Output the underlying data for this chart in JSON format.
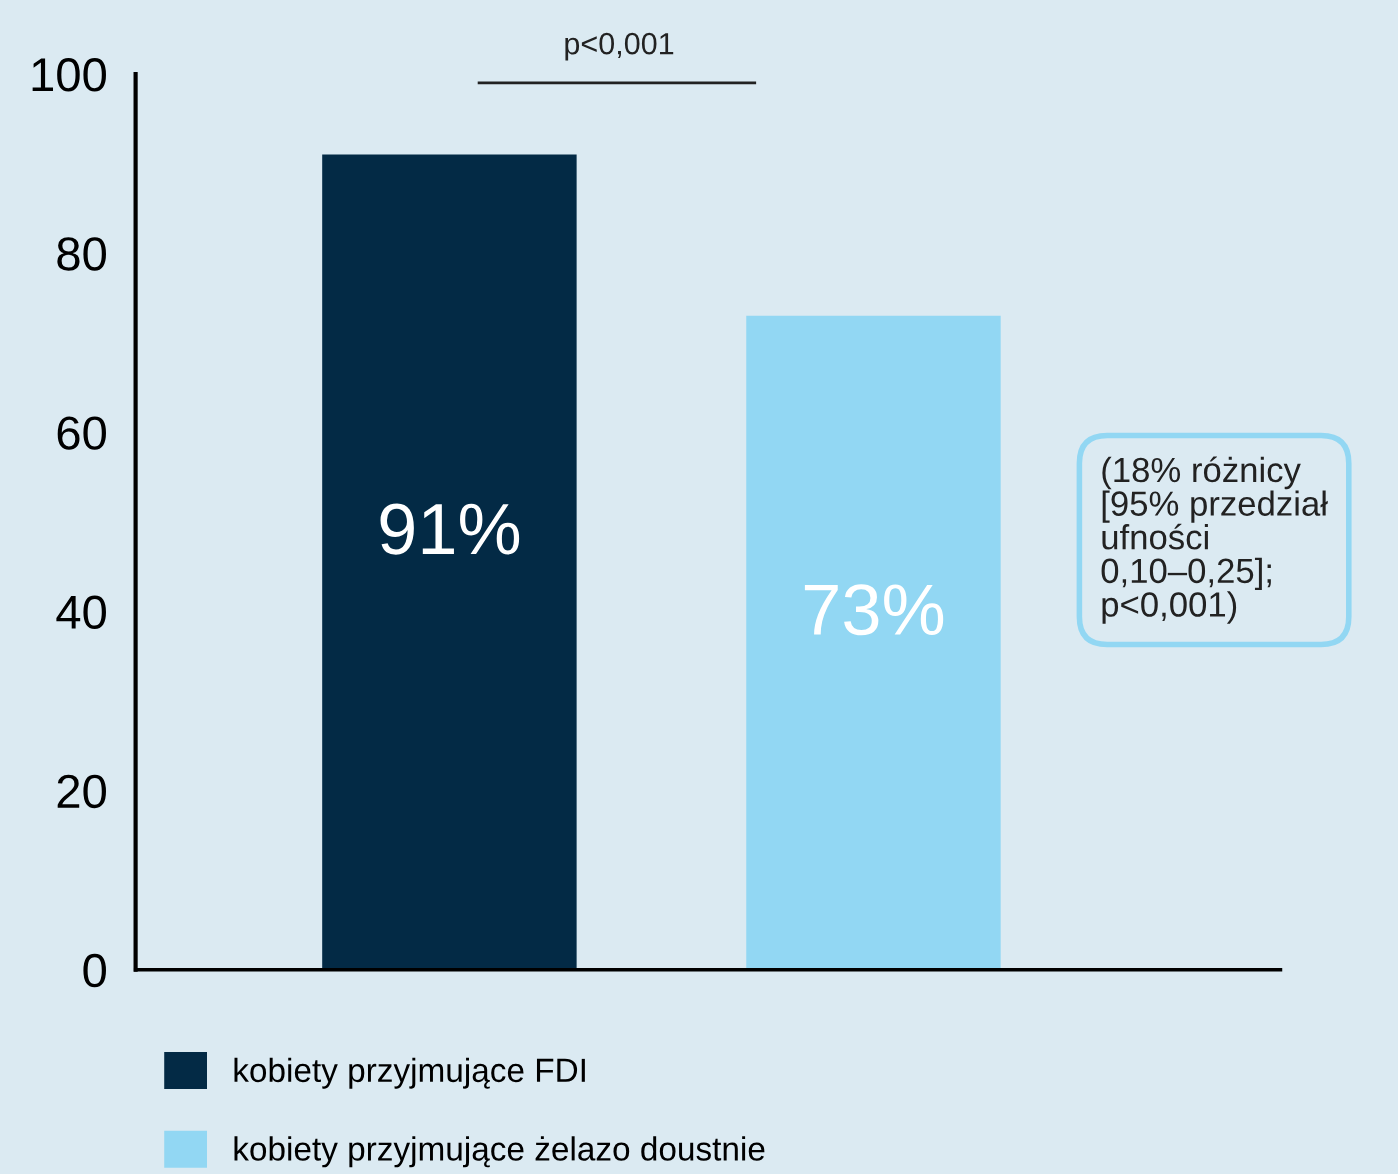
{
  "chart_data": {
    "type": "bar",
    "categories": [
      null,
      null
    ],
    "series": [
      {
        "name": "kobiety przyjmujące FDI",
        "color": "#032a45",
        "values": [
          91,
          null
        ],
        "value_labels": [
          "91%",
          null
        ]
      },
      {
        "name": "kobiety przyjmujące żelazo doustnie",
        "color": "#92d7f3",
        "values": [
          null,
          73
        ],
        "value_labels": [
          null,
          "73%"
        ]
      }
    ],
    "ylim": [
      0,
      100
    ],
    "yticks": [
      0,
      20,
      40,
      60,
      80,
      100
    ],
    "grid": false,
    "legend": "bottom left",
    "annotations": [
      "p<0,001",
      "(18% różnicy\n[95% przedział\nufności\n0,10–0,25];\np<0,001)"
    ]
  }
}
